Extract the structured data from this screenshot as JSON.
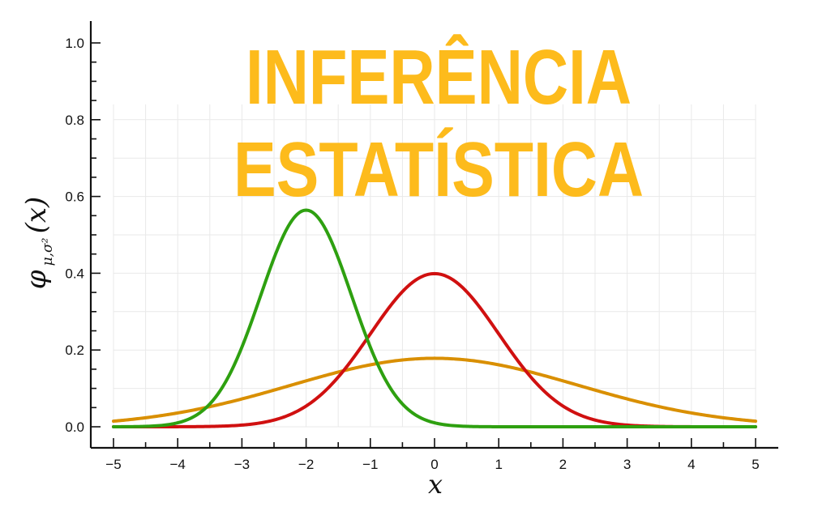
{
  "chart_data": {
    "type": "line",
    "title": [
      "INFERÊNCIA",
      "ESTATÍSTICA"
    ],
    "xlabel": "x",
    "ylabel": {
      "main": "φ",
      "subscript": "μ,σ²",
      "argument": "(x)"
    },
    "xlim": [
      -5,
      5
    ],
    "ylim": [
      0,
      1.0
    ],
    "xticks": [
      "−5",
      "−4",
      "−3",
      "−2",
      "−1",
      "0",
      "1",
      "2",
      "3",
      "4",
      "5"
    ],
    "xtick_values": [
      -5,
      -4,
      -3,
      -2,
      -1,
      0,
      1,
      2,
      3,
      4,
      5
    ],
    "yticks": [
      "0.0",
      "0.2",
      "0.4",
      "0.6",
      "0.8",
      "1.0"
    ],
    "ytick_values": [
      0,
      0.2,
      0.4,
      0.6,
      0.8,
      1.0
    ],
    "grid": true,
    "series": [
      {
        "color": "#d98f00",
        "mu": 0,
        "sigma": 2.236,
        "x": [
          -5,
          -4,
          -3,
          -2,
          -1,
          0,
          1,
          2,
          3,
          4,
          5
        ],
        "values": [
          0.015,
          0.036,
          0.072,
          0.12,
          0.16,
          0.178,
          0.16,
          0.12,
          0.072,
          0.036,
          0.015
        ]
      },
      {
        "color": "#d01010",
        "mu": 0,
        "sigma": 1.0,
        "x": [
          -5,
          -4,
          -3,
          -2,
          -1,
          0,
          1,
          2,
          3,
          4,
          5
        ],
        "values": [
          0.0,
          0.0,
          0.004,
          0.054,
          0.242,
          0.399,
          0.242,
          0.054,
          0.004,
          0.0,
          0.0
        ]
      },
      {
        "color": "#2ea010",
        "mu": -2,
        "sigma": 0.707,
        "x": [
          -5,
          -4,
          -3,
          -2,
          -1,
          0,
          1,
          2,
          3,
          4,
          5
        ],
        "values": [
          0.0,
          0.01,
          0.208,
          0.564,
          0.208,
          0.01,
          0.0,
          0.0,
          0.0,
          0.0,
          0.0
        ]
      }
    ]
  }
}
